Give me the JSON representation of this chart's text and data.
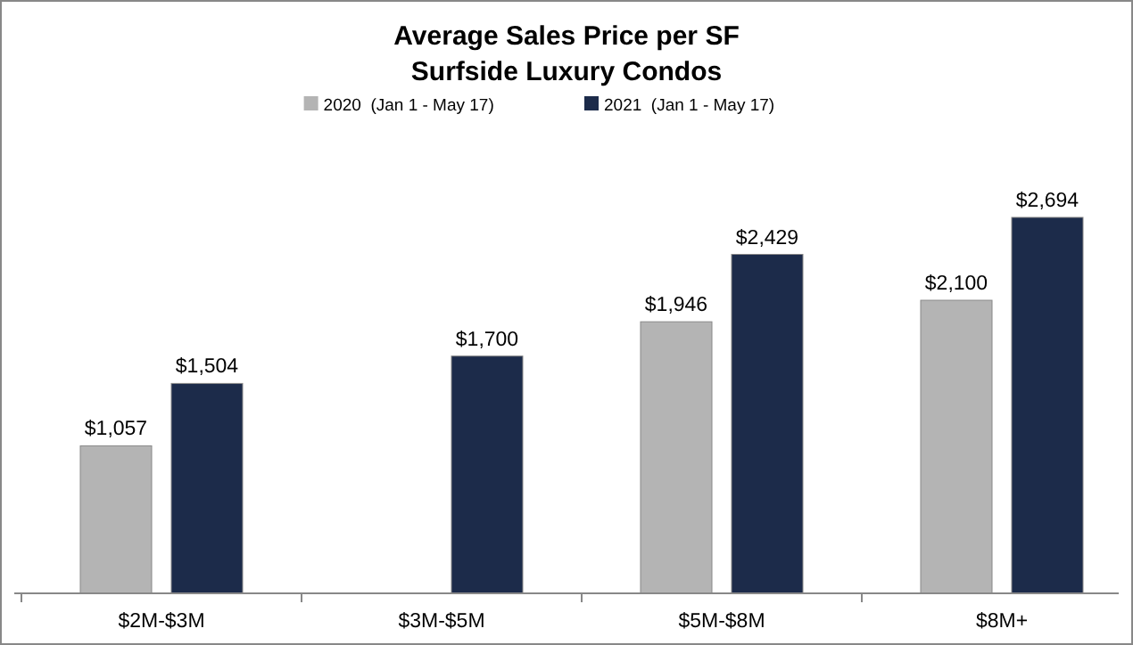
{
  "chart_data": {
    "type": "bar",
    "title": "Average Sales Price per SF",
    "subtitle": "Surfside Luxury Condos",
    "categories": [
      "$2M-$3M",
      "$3M-$5M",
      "$5M-$8M",
      "$8M+"
    ],
    "legend": "top",
    "series": [
      {
        "name": "2020  (Jan 1 - May 17)",
        "color": "#b4b4b4",
        "values": [
          1057,
          null,
          1946,
          2100
        ],
        "value_labels": [
          "$1,057",
          null,
          "$1,946",
          "$2,100"
        ]
      },
      {
        "name": "2021  (Jan 1 - May 17)",
        "color": "#1c2b4a",
        "values": [
          1504,
          1700,
          2429,
          2694
        ],
        "value_labels": [
          "$1,504",
          "$1,700",
          "$2,429",
          "$2,694"
        ]
      }
    ]
  }
}
